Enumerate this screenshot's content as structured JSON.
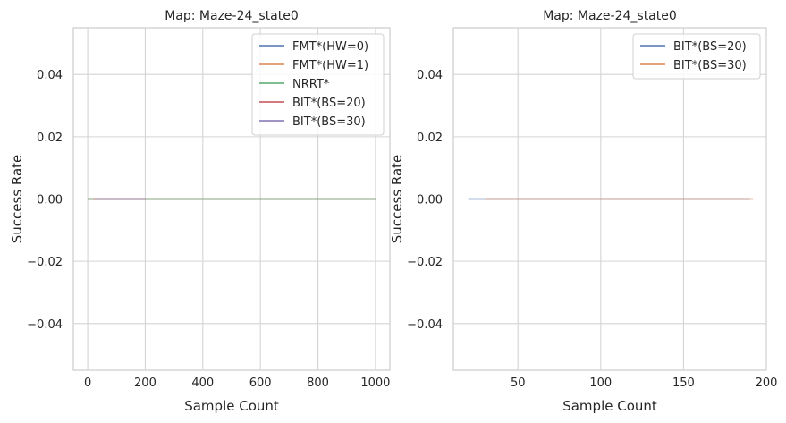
{
  "chart_data": [
    {
      "type": "line",
      "title": "Map: Maze-24_state0",
      "xlabel": "Sample Count",
      "ylabel": "Success Rate",
      "xlim": [
        -50,
        1050
      ],
      "ylim": [
        -0.055,
        0.055
      ],
      "xticks": [
        0,
        200,
        400,
        600,
        800,
        1000
      ],
      "yticks": [
        -0.04,
        -0.02,
        0.0,
        0.02,
        0.04
      ],
      "ytick_labels": [
        "−0.04",
        "−0.02",
        "0.00",
        "0.02",
        "0.04"
      ],
      "grid": true,
      "legend_position": "top-right",
      "series": [
        {
          "name": "FMT*(HW=0)",
          "color": "#4c72b0",
          "x": [
            0,
            1000
          ],
          "y": [
            0,
            0
          ]
        },
        {
          "name": "FMT*(HW=1)",
          "color": "#dd8452",
          "x": [
            0,
            1000
          ],
          "y": [
            0,
            0
          ]
        },
        {
          "name": "NRRT*",
          "color": "#55a868",
          "x": [
            0,
            1000
          ],
          "y": [
            0,
            0
          ]
        },
        {
          "name": "BIT*(BS=20)",
          "color": "#c44e52",
          "x": [
            20,
            200
          ],
          "y": [
            0,
            0
          ]
        },
        {
          "name": "BIT*(BS=30)",
          "color": "#8172b3",
          "x": [
            30,
            200
          ],
          "y": [
            0,
            0
          ]
        }
      ]
    },
    {
      "type": "line",
      "title": "Map: Maze-24_state0",
      "xlabel": "Sample Count",
      "ylabel": "Success Rate",
      "xlim": [
        11,
        200
      ],
      "ylim": [
        -0.055,
        0.055
      ],
      "xticks": [
        50,
        100,
        150,
        200
      ],
      "yticks": [
        -0.04,
        -0.02,
        0.0,
        0.02,
        0.04
      ],
      "ytick_labels": [
        "−0.04",
        "−0.02",
        "0.00",
        "0.02",
        "0.04"
      ],
      "grid": true,
      "legend_position": "top-right",
      "series": [
        {
          "name": "BIT*(BS=20)",
          "color": "#4c72b0",
          "x": [
            20,
            190
          ],
          "y": [
            0,
            0
          ]
        },
        {
          "name": "BIT*(BS=30)",
          "color": "#dd8452",
          "x": [
            30,
            192
          ],
          "y": [
            0,
            0
          ]
        }
      ]
    }
  ]
}
